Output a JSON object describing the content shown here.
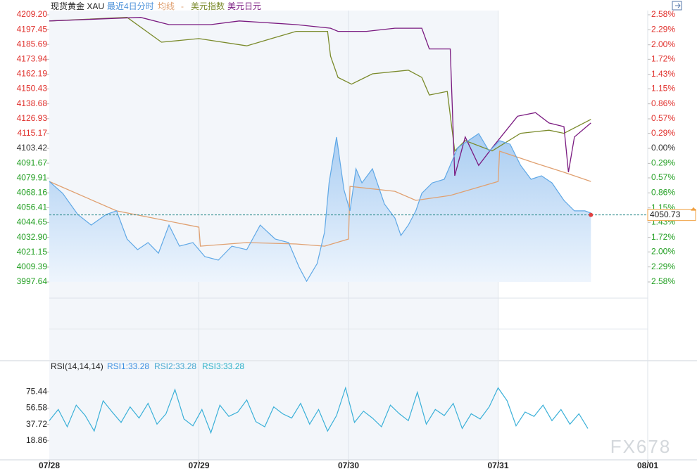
{
  "chart_data": [
    {
      "type": "line",
      "title": "现货黄金 XAU",
      "subtitle": "最近4日分时",
      "legend_separator": "-",
      "color": "#5fa8e6",
      "up_color": "#e0302c",
      "down_color": "#24a024",
      "neutral_color": "#333333",
      "xlim": [
        0,
        4
      ],
      "xticks": [
        {
          "value": 0,
          "label": "07/28"
        },
        {
          "value": 1,
          "label": "07/29"
        },
        {
          "value": 2,
          "label": "07/30"
        },
        {
          "value": 3,
          "label": "07/31"
        },
        {
          "value": 4,
          "label": "08/01"
        }
      ],
      "ylim": [
        3997.64,
        4209.2
      ],
      "yticks": [
        {
          "value": 4209.2,
          "label": "4209.20"
        },
        4197.45,
        4185.69,
        4173.94,
        4162.19,
        4150.43,
        4138.68,
        4126.93,
        4115.17,
        4103.42,
        4091.67,
        4079.91,
        4068.16,
        4056.41,
        4044.65,
        {
          "value": 4032.9,
          "label": "4032.90"
        },
        4021.15,
        4009.39,
        3997.64
      ],
      "y2lim": [
        -2.58,
        2.58
      ],
      "y2ticks": [
        {
          "value": 2.58,
          "label": "2.58%"
        },
        {
          "value": 2.29,
          "label": "2.29%"
        },
        {
          "value": 2.0,
          "label": "2.00%"
        },
        {
          "value": 1.72,
          "label": "1.72%"
        },
        {
          "value": 1.43,
          "label": "1.43%"
        },
        {
          "value": 1.15,
          "label": "1.15%"
        },
        {
          "value": 0.86,
          "label": "0.86%"
        },
        {
          "value": 0.57,
          "label": "0.57%"
        },
        {
          "value": 0.29,
          "label": "0.29%"
        },
        {
          "value": 0,
          "label": "0.00%"
        },
        {
          "value": -0.29,
          "label": "0.29%"
        },
        {
          "value": -0.57,
          "label": "0.57%"
        },
        {
          "value": -0.86,
          "label": "0.86%"
        },
        {
          "value": -1.15,
          "label": "1.15%"
        },
        {
          "value": -1.43,
          "label": "1.43%"
        },
        {
          "value": -1.72,
          "label": "1.72%"
        },
        {
          "value": -2.0,
          "label": "2.00%"
        },
        {
          "value": -2.29,
          "label": "2.29%"
        },
        {
          "value": -2.58,
          "label": "2.58%"
        }
      ],
      "last_price": 4050.73,
      "x": [
        0,
        0.09,
        0.19,
        0.28,
        0.38,
        0.45,
        0.52,
        0.59,
        0.66,
        0.73,
        0.8,
        0.87,
        0.96,
        1.04,
        1.13,
        1.22,
        1.32,
        1.41,
        1.51,
        1.6,
        1.67,
        1.72,
        1.79,
        1.84,
        1.87,
        1.92,
        1.97,
        2.01,
        2.05,
        2.09,
        2.16,
        2.24,
        2.31,
        2.35,
        2.4,
        2.45,
        2.49,
        2.56,
        2.64,
        2.68,
        2.73,
        2.8,
        2.87,
        2.94,
        3.01,
        3.08,
        3.15,
        3.22,
        3.29,
        3.36,
        3.44,
        3.51,
        3.58,
        3.62
      ],
      "values": [
        4077.2,
        4067.8,
        4051.1,
        4042.7,
        4051.1,
        4053.9,
        4031.6,
        4023.2,
        4028.8,
        4020.4,
        4042.7,
        4026.0,
        4028.8,
        4017.7,
        4014.9,
        4026.0,
        4023.2,
        4042.7,
        4031.6,
        4028.8,
        4009.3,
        3998.2,
        4012.1,
        4037.1,
        4076.1,
        4112.3,
        4070.6,
        4053.9,
        4087.3,
        4076.1,
        4087.3,
        4059.4,
        4048.3,
        4034.4,
        4042.7,
        4053.9,
        4067.8,
        4076.1,
        4078.9,
        4090.0,
        4104.0,
        4109.5,
        4115.1,
        4101.2,
        4109.5,
        4106.7,
        4090.0,
        4078.9,
        4081.7,
        4076.1,
        4062.2,
        4053.9,
        4053.9,
        4052.2
      ],
      "series": [
        {
          "name": "均线",
          "color": "#e0a070",
          "x": [
            0,
            0.45,
            1.0,
            1.01,
            1.32,
            1.65,
            1.84,
            2.0,
            2.01,
            2.31,
            2.45,
            2.68,
            3.0,
            3.01,
            3.25,
            3.44,
            3.62
          ],
          "values": [
            4077.2,
            4053.9,
            4041.0,
            4026.0,
            4028.8,
            4027.7,
            4026.0,
            4031.6,
            4073.3,
            4069.4,
            4062.2,
            4066.1,
            4077.2,
            4101.2,
            4091.7,
            4084.5,
            4077.2
          ]
        },
        {
          "name": "美元指数",
          "color": "#7a8a2a",
          "axis": "y2",
          "x": [
            0,
            0.52,
            0.75,
            1.0,
            1.32,
            1.65,
            1.86,
            1.88,
            1.93,
            2.02,
            2.16,
            2.4,
            2.49,
            2.54,
            2.66,
            2.71,
            2.78,
            2.96,
            3.15,
            3.34,
            3.44,
            3.62
          ],
          "values": [
            2.46,
            2.53,
            2.05,
            2.12,
            1.98,
            2.26,
            2.26,
            1.78,
            1.37,
            1.24,
            1.44,
            1.51,
            1.37,
            1.03,
            1.1,
            -0.05,
            0.15,
            -0.05,
            0.29,
            0.35,
            0.29,
            0.56
          ]
        },
        {
          "name": "美元日元",
          "color": "#7a1a80",
          "axis": "y2",
          "x": [
            0,
            0.61,
            0.8,
            1.08,
            1.27,
            1.65,
            1.88,
            1.93,
            2.12,
            2.31,
            2.49,
            2.54,
            2.68,
            2.71,
            2.78,
            2.87,
            2.96,
            3.13,
            3.25,
            3.34,
            3.44,
            3.47,
            3.51,
            3.62
          ],
          "values": [
            2.46,
            2.53,
            2.39,
            2.39,
            2.46,
            2.39,
            2.32,
            2.26,
            2.26,
            2.32,
            2.32,
            1.92,
            1.92,
            -0.53,
            0.22,
            -0.33,
            0.01,
            0.62,
            0.69,
            0.49,
            0.42,
            -0.46,
            0.22,
            0.49
          ]
        }
      ]
    },
    {
      "type": "line",
      "title": "RSI(14,14,14)",
      "legend": [
        "RSI1:33.28",
        "RSI2:33.28",
        "RSI3:33.28"
      ],
      "legend_colors": [
        "#3a8ee0",
        "#46a8d0",
        "#2bb0c8"
      ],
      "color": "#3ab0d8",
      "xlim": [
        0,
        4
      ],
      "ylim": [
        0,
        100
      ],
      "yticks": [
        75.44,
        56.58,
        37.72,
        18.86
      ],
      "x": [
        0,
        0.06,
        0.12,
        0.18,
        0.24,
        0.3,
        0.36,
        0.42,
        0.48,
        0.54,
        0.6,
        0.66,
        0.72,
        0.78,
        0.84,
        0.9,
        0.96,
        1.02,
        1.08,
        1.14,
        1.2,
        1.26,
        1.32,
        1.38,
        1.44,
        1.5,
        1.56,
        1.62,
        1.68,
        1.74,
        1.8,
        1.86,
        1.92,
        1.98,
        2.04,
        2.1,
        2.16,
        2.22,
        2.28,
        2.34,
        2.4,
        2.46,
        2.52,
        2.58,
        2.64,
        2.7,
        2.76,
        2.82,
        2.88,
        2.94,
        3.0,
        3.06,
        3.12,
        3.18,
        3.24,
        3.3,
        3.36,
        3.42,
        3.48,
        3.54,
        3.6
      ],
      "values": [
        42,
        55,
        35,
        60,
        48,
        30,
        65,
        52,
        40,
        58,
        45,
        62,
        38,
        50,
        78,
        44,
        36,
        55,
        28,
        60,
        47,
        52,
        66,
        41,
        35,
        58,
        50,
        45,
        62,
        38,
        55,
        30,
        48,
        80,
        40,
        53,
        45,
        35,
        60,
        50,
        42,
        75,
        38,
        55,
        48,
        62,
        33,
        50,
        44,
        58,
        80,
        65,
        36,
        52,
        47,
        60,
        42,
        55,
        38,
        50,
        33
      ]
    }
  ]
}
